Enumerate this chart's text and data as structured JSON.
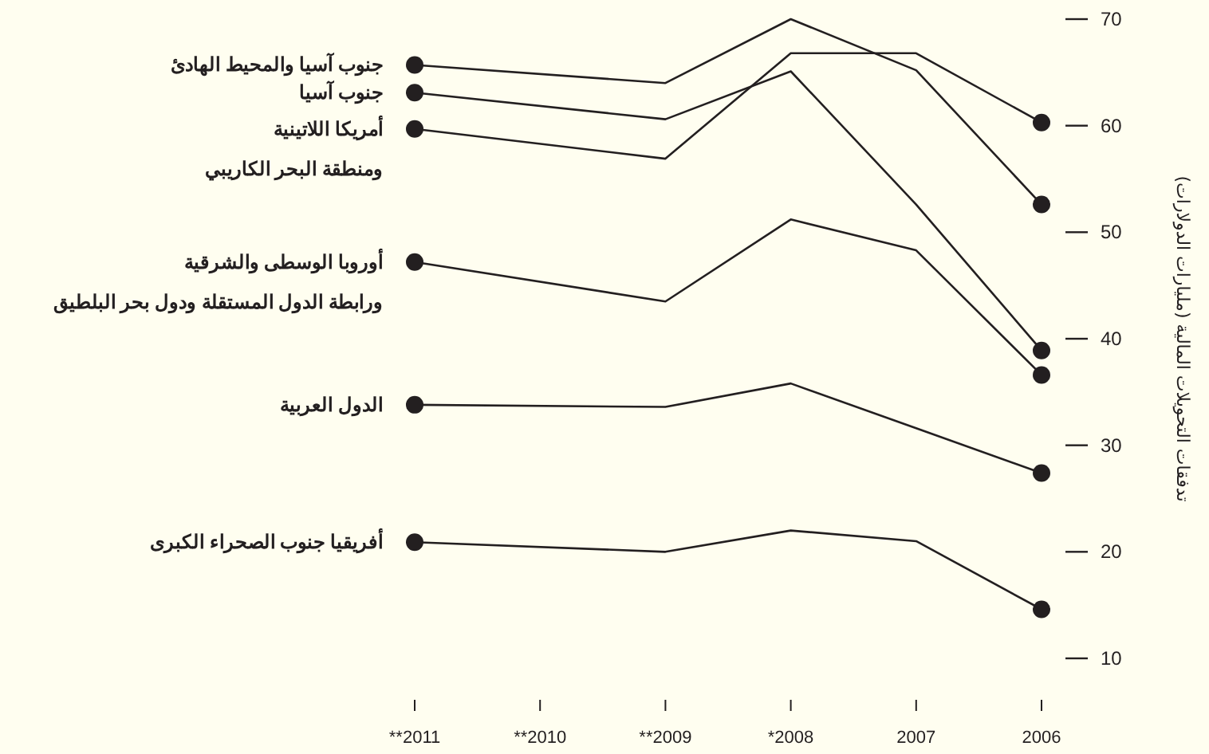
{
  "chart_data": {
    "type": "line",
    "ylabel": "تدفقات التحويلات المالية (مليارات الدولارات)",
    "xlim": [
      2011,
      2006
    ],
    "xticks": [
      {
        "value": 2011,
        "label": "**2011"
      },
      {
        "value": 2010,
        "label": "**2010"
      },
      {
        "value": 2009,
        "label": "**2009"
      },
      {
        "value": 2008,
        "label": "*2008"
      },
      2007,
      2006
    ],
    "ylim": [
      10,
      70
    ],
    "yticks": [
      10,
      20,
      30,
      40,
      50,
      60,
      70
    ],
    "grid": false,
    "line_style": "solid",
    "series": [
      {
        "name": "جنوب آسيا والمحيط الهادئ",
        "color": "#231f20",
        "x": [
          2011,
          2009,
          2008,
          2007,
          2006
        ],
        "values": [
          65.7,
          64.0,
          70.0,
          65.2,
          52.6
        ]
      },
      {
        "name": "جنوب آسيا",
        "color": "#231f20",
        "x": [
          2011,
          2009,
          2008,
          2007,
          2006
        ],
        "values": [
          63.1,
          60.6,
          65.1,
          52.6,
          38.9
        ]
      },
      {
        "name": "أمريكا اللاتينية ومنطقة البحر الكاريبي",
        "color": "#231f20",
        "x": [
          2011,
          2009,
          2008,
          2007,
          2006
        ],
        "values": [
          59.7,
          56.9,
          66.8,
          66.8,
          60.3
        ]
      },
      {
        "name": "أوروبا الوسطى والشرقية ورابطة الدول المستقلة ودول بحر البلطيق",
        "color": "#231f20",
        "x": [
          2011,
          2009,
          2008,
          2007,
          2006
        ],
        "values": [
          47.2,
          43.5,
          51.2,
          48.3,
          36.6
        ]
      },
      {
        "name": "الدول العربية",
        "color": "#231f20",
        "x": [
          2011,
          2009,
          2008,
          2007,
          2006
        ],
        "values": [
          33.8,
          33.6,
          35.8,
          31.6,
          27.4
        ]
      },
      {
        "name": "أفريقيا جنوب الصحراء الكبرى",
        "color": "#231f20",
        "x": [
          2011,
          2009,
          2008,
          2007,
          2006
        ],
        "values": [
          20.9,
          20.0,
          22.0,
          21.0,
          14.6
        ]
      }
    ]
  }
}
